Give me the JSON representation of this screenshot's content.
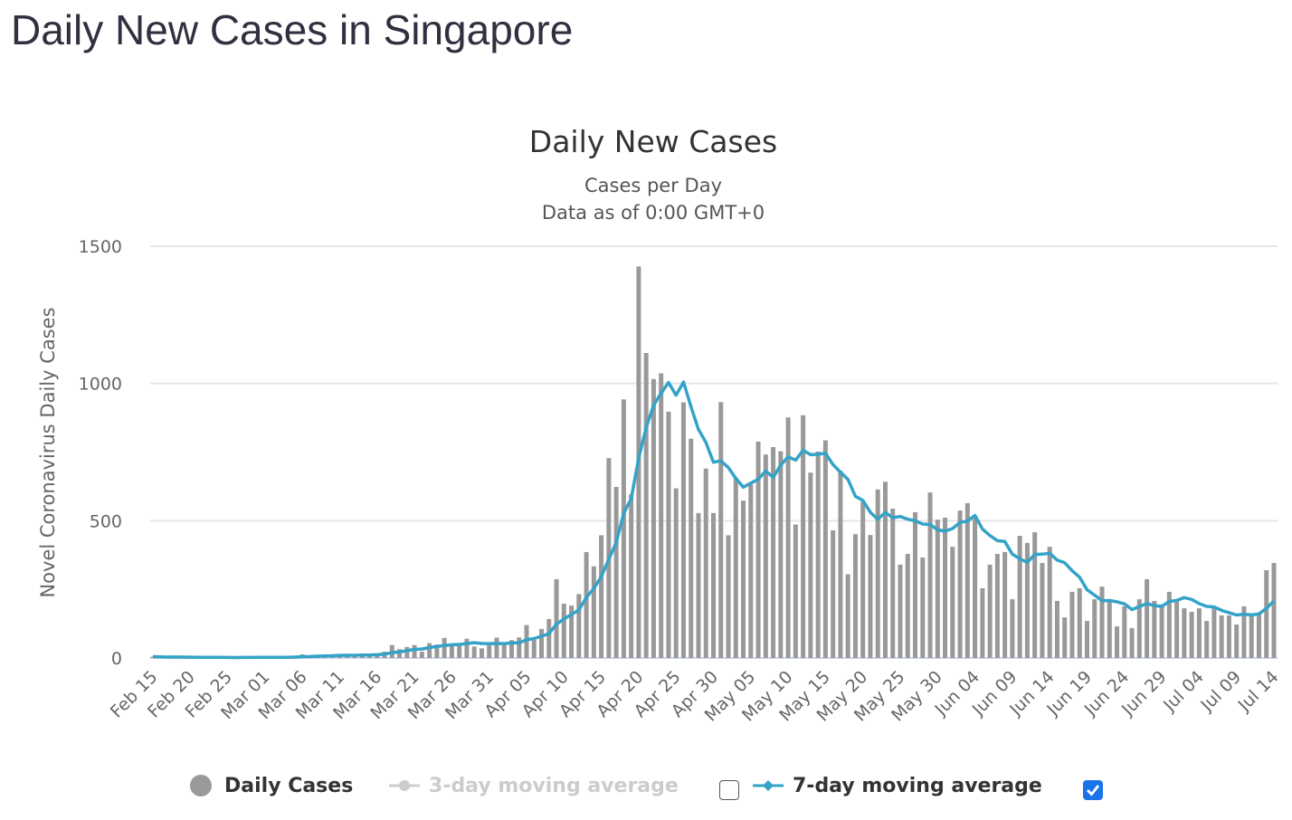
{
  "page_title": "Daily New Cases in Singapore",
  "colors": {
    "bars": "#999999",
    "ma7": "#33a3c8",
    "ma3_disabled": "#cccccc",
    "checkbox": "#1a73e8"
  },
  "legend": {
    "daily": "Daily Cases",
    "ma3": "3-day moving average",
    "ma3_checked": false,
    "ma7": "7-day moving average",
    "ma7_checked": true
  },
  "chart_data": {
    "type": "bar",
    "title": "Daily New Cases",
    "subtitle": [
      "Cases per Day",
      "Data as of 0:00 GMT+0"
    ],
    "ylabel": "Novel Coronavirus Daily Cases",
    "xlabel": "",
    "ylim": [
      0,
      1500
    ],
    "yticks": [
      0,
      500,
      1000,
      1500
    ],
    "grid": true,
    "legend_position": "bottom",
    "start_date": "Feb 15",
    "xtick_labels": [
      "Feb 15",
      "Feb 20",
      "Feb 25",
      "Mar 01",
      "Mar 06",
      "Mar 11",
      "Mar 16",
      "Mar 21",
      "Mar 26",
      "Mar 31",
      "Apr 05",
      "Apr 10",
      "Apr 15",
      "Apr 20",
      "Apr 25",
      "Apr 30",
      "May 05",
      "May 10",
      "May 15",
      "May 20",
      "May 25",
      "May 30",
      "Jun 04",
      "Jun 09",
      "Jun 14",
      "Jun 19",
      "Jun 24",
      "Jun 29",
      "Jul 04",
      "Jul 09",
      "Jul 14"
    ],
    "xtick_every_days": 5,
    "series": [
      {
        "name": "Daily Cases",
        "type": "bar",
        "values": [
          5,
          3,
          2,
          4,
          3,
          1,
          1,
          3,
          3,
          1,
          1,
          2,
          3,
          2,
          4,
          4,
          2,
          2,
          2,
          7,
          13,
          8,
          12,
          10,
          6,
          12,
          9,
          13,
          12,
          14,
          17,
          23,
          47,
          32,
          40,
          47,
          23,
          54,
          49,
          73,
          52,
          49,
          70,
          42,
          35,
          47,
          74,
          49,
          65,
          75,
          120,
          66,
          106,
          142,
          287,
          198,
          191,
          233,
          386,
          334,
          447,
          728,
          623,
          942,
          596,
          1426,
          1111,
          1016,
          1037,
          897,
          618,
          931,
          799,
          528,
          690,
          528,
          932,
          447,
          657,
          573,
          632,
          788,
          741,
          768,
          753,
          876,
          486,
          884,
          675,
          752,
          793,
          465,
          682,
          305,
          451,
          570,
          448,
          614,
          642,
          544,
          340,
          379,
          531,
          366,
          603,
          504,
          511,
          405,
          537,
          564,
          511,
          254,
          340,
          379,
          386,
          214,
          445,
          419,
          458,
          346,
          405,
          208,
          148,
          241,
          254,
          135,
          214,
          260,
          214,
          115,
          188,
          109,
          214,
          287,
          208,
          195,
          241,
          214,
          181,
          168,
          181,
          135,
          181,
          155,
          155,
          122,
          188,
          162,
          162,
          320,
          346
        ]
      },
      {
        "name": "7-day moving average",
        "type": "line",
        "window": 7
      }
    ]
  }
}
